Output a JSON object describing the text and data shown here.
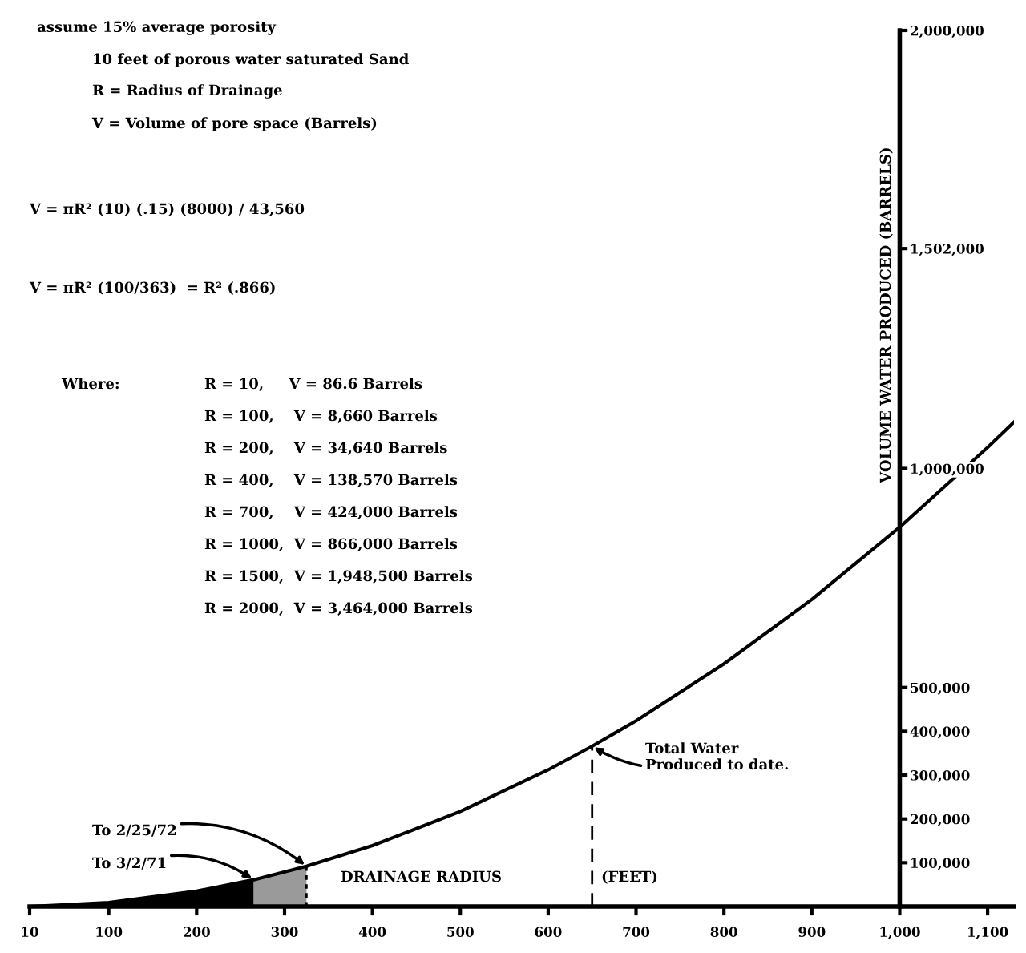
{
  "chart_data": {
    "type": "line",
    "ylabel": "VOLUME WATER PRODUCED (BARRELS)",
    "xlim": [
      10,
      1130
    ],
    "ylim": [
      0,
      2000000
    ],
    "xticks": [
      10,
      100,
      200,
      300,
      400,
      500,
      600,
      700,
      800,
      900,
      {
        "value": 1000,
        "label": "1,000"
      },
      {
        "value": 1100,
        "label": "1,100"
      }
    ],
    "yticks": [
      {
        "value": 100000,
        "label": "100,000"
      },
      {
        "value": 200000,
        "label": "200,000"
      },
      {
        "value": 300000,
        "label": "300,000"
      },
      {
        "value": 400000,
        "label": "400,000"
      },
      {
        "value": 500000,
        "label": "500,000"
      },
      {
        "value": 1000000,
        "label": "1,000,000"
      },
      {
        "value": 1502000,
        "label": "1,502,000"
      },
      {
        "value": 2000000,
        "label": "2,000,000"
      }
    ],
    "grid": false,
    "legend": false,
    "series": [
      {
        "type": "area",
        "color": "#000000",
        "x": [
          10,
          100,
          200,
          265
        ],
        "values": [
          0,
          9000,
          35000,
          61000
        ]
      },
      {
        "type": "area",
        "color": "#9a9a9a",
        "x": [
          265,
          300,
          325
        ],
        "values": [
          61000,
          78000,
          92000
        ]
      },
      {
        "color": "#000000",
        "x": [
          10,
          100,
          200,
          265,
          325,
          400,
          500,
          600,
          650,
          700,
          800,
          900,
          1000,
          1100,
          1130
        ],
        "values": [
          0,
          9000,
          35000,
          61000,
          92000,
          139000,
          217000,
          312000,
          366000,
          424000,
          554000,
          701000,
          866000,
          1048000,
          1106000
        ]
      },
      {
        "type": "line",
        "color": "#000000",
        "line_style": "dotted",
        "x": [
          325,
          325
        ],
        "values": [
          0,
          92000
        ]
      },
      {
        "type": "line",
        "color": "#000000",
        "line_style": "dashed",
        "x": [
          650,
          650
        ],
        "values": [
          0,
          366000
        ]
      }
    ],
    "annotations": [
      "assume 15% average porosity",
      "10 feet of porous water saturated Sand",
      "R = Radius of Drainage",
      "V = Volume of pore space (Barrels)",
      "V = πR² (10) (.15) (8000) / 43,560",
      "V = πR² (100/363)  = R² (.866)",
      "Where:",
      "R = 10,     V = 86.6 Barrels",
      "R = 100,    V = 8,660 Barrels",
      "R = 200,    V = 34,640 Barrels",
      "R = 400,    V = 138,570 Barrels",
      "R = 700,    V = 424,000 Barrels",
      "R = 1000,  V = 866,000 Barrels",
      "R = 1500,  V = 1,948,500 Barrels",
      "R = 2000,  V = 3,464,000 Barrels",
      "DRAINAGE RADIUS",
      "(FEET)",
      {
        "text": "To 2/25/72",
        "x": 325,
        "y": 92000
      },
      {
        "text": "To 3/2/71",
        "x": 265,
        "y": 61000
      },
      {
        "text": "Total Water\nProduced to date.",
        "x": 650,
        "y": 366000
      }
    ]
  }
}
